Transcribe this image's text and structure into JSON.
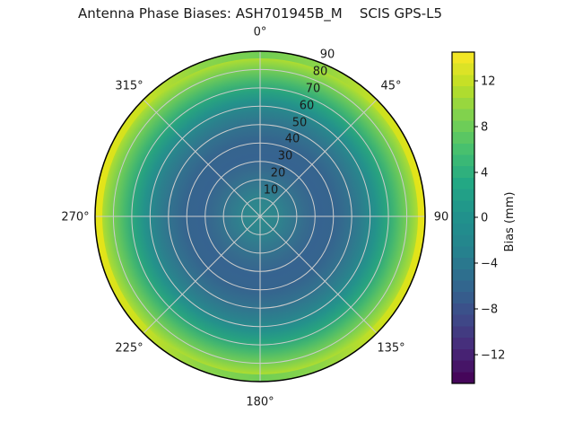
{
  "chart_data": {
    "type": "heatmap",
    "projection": "polar",
    "title": "Antenna Phase Biases: ASH701945B_M    SCIS GPS-L5",
    "antenna": "ASH701945B_M",
    "calibration": "SCIS",
    "signal": "GPS-L5",
    "angular_ticks": [
      "0°",
      "45°",
      "90",
      "135°",
      "180°",
      "225°",
      "270°",
      "315°"
    ],
    "radial_ticks": [
      "10",
      "20",
      "30",
      "40",
      "50",
      "60",
      "70",
      "80",
      "90"
    ],
    "radial_axis_range": [
      0,
      90
    ],
    "colorbar": {
      "label": "Bias (mm)",
      "ticks": [
        "12",
        "8",
        "4",
        "0",
        "−4",
        "−8",
        "−12"
      ],
      "range": [
        -14.5,
        14.5
      ],
      "band_colors": [
        "#45065a",
        "#461567",
        "#472273",
        "#462f7c",
        "#423b81",
        "#3f4787",
        "#3b518a",
        "#365c8c",
        "#32668e",
        "#2e6f8e",
        "#2a788e",
        "#26818e",
        "#24878d",
        "#228c8d",
        "#21918c",
        "#21988a",
        "#22a087",
        "#23a884",
        "#2fb07d",
        "#3ab876",
        "#48c06e",
        "#5ac663",
        "#6dcd58",
        "#81d24d",
        "#98d73e",
        "#afdc2f",
        "#c6e026",
        "#dce326",
        "#f2e625"
      ]
    },
    "radial_profile": {
      "zenith_deg": [
        0,
        10,
        20,
        30,
        40,
        50,
        60,
        70,
        80,
        85,
        90
      ],
      "bias_mm": [
        0,
        -1,
        -3,
        -4,
        -4,
        -3,
        0,
        3.5,
        8.5,
        11.5,
        13.5
      ]
    },
    "azimuthal_variation": "rim bias strongest (yellow, ~14 mm) toward 90°/270° (east/west), greener (~11 mm) toward 0°/180°",
    "face_gradient": [
      {
        "o": "0%",
        "c": "#2d8b8d"
      },
      {
        "o": "10%",
        "c": "#2e858d"
      },
      {
        "o": "18%",
        "c": "#32798e"
      },
      {
        "o": "28%",
        "c": "#366b8e"
      },
      {
        "o": "36%",
        "c": "#366390"
      },
      {
        "o": "46%",
        "c": "#35658e"
      },
      {
        "o": "55%",
        "c": "#32728e"
      },
      {
        "o": "63%",
        "c": "#2b818d"
      },
      {
        "o": "70%",
        "c": "#24928b"
      },
      {
        "o": "76%",
        "c": "#28a37f"
      },
      {
        "o": "82%",
        "c": "#46b86e"
      },
      {
        "o": "88%",
        "c": "#6eca58"
      },
      {
        "o": "93%",
        "c": "#96d740"
      },
      {
        "o": "97%",
        "c": "#bcdf27"
      },
      {
        "o": "100%",
        "c": "#d8e219"
      }
    ],
    "rim_gradient": [
      {
        "o": "0%",
        "c": "#e5e419"
      },
      {
        "o": "12%",
        "c": "#cde11e"
      },
      {
        "o": "32%",
        "c": "#8ad549"
      },
      {
        "o": "50%",
        "c": "#70ce56"
      },
      {
        "o": "68%",
        "c": "#8ad549"
      },
      {
        "o": "88%",
        "c": "#cde11e"
      },
      {
        "o": "100%",
        "c": "#e5e419"
      }
    ],
    "grid_color": "#cccccc",
    "outline_color": "#000000",
    "text_color": "#1a1a1a",
    "background": "#ffffff"
  }
}
